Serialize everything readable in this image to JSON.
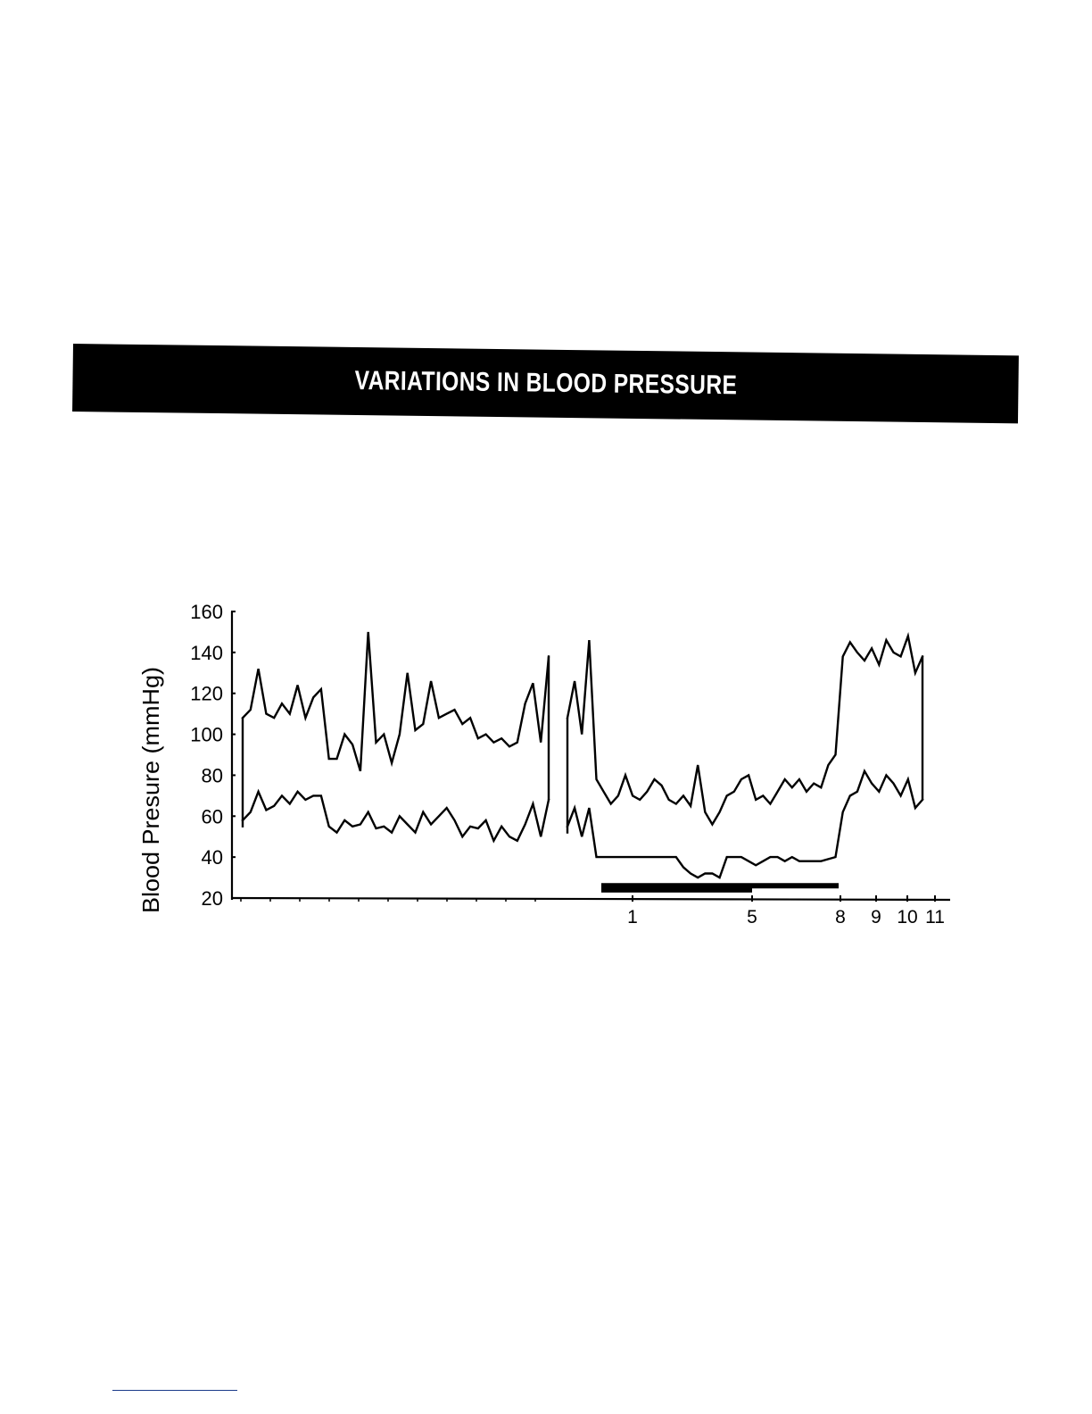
{
  "header": {
    "title": "VARIATIONS IN BLOOD PRESSURE"
  },
  "chart_data": {
    "type": "line",
    "title": "VARIATIONS IN BLOOD PRESSURE",
    "ylabel": "Blood Presure (mmHg)",
    "xlabel": "",
    "ylim": [
      20,
      160
    ],
    "y_ticks": [
      20,
      40,
      60,
      80,
      100,
      120,
      140,
      160
    ],
    "x_tick_labels": [
      "1",
      "5",
      "8",
      "9",
      "10",
      "11"
    ],
    "grid": false,
    "legend": "none",
    "segment_break": 40,
    "x": [
      0,
      1,
      2,
      3,
      4,
      5,
      6,
      7,
      8,
      9,
      10,
      11,
      12,
      13,
      14,
      15,
      16,
      17,
      18,
      19,
      20,
      21,
      22,
      23,
      24,
      25,
      26,
      27,
      28,
      29,
      30,
      31,
      32,
      33,
      34,
      35,
      36,
      37,
      38,
      39,
      40,
      41,
      42,
      43,
      44,
      45,
      46,
      47,
      48,
      49,
      50,
      51,
      52,
      53,
      54,
      55,
      56,
      57,
      58,
      59,
      60,
      61,
      62,
      63,
      64,
      65,
      66,
      67,
      68,
      69,
      70,
      71,
      72,
      73,
      74,
      75,
      76,
      77,
      78,
      79,
      80,
      81,
      82,
      83,
      84,
      85,
      86,
      87,
      88,
      89
    ],
    "series": [
      {
        "values": [
          108,
          112,
          132,
          110,
          108,
          115,
          110,
          124,
          108,
          118,
          122,
          88,
          88,
          100,
          95,
          82,
          150,
          96,
          100,
          86,
          100,
          130,
          102,
          105,
          126,
          108,
          110,
          112,
          105,
          108,
          98,
          100,
          96,
          98,
          94,
          96,
          115,
          125,
          96,
          138,
          108,
          126,
          100,
          146,
          78,
          72,
          66,
          70,
          80,
          70,
          68,
          72,
          78,
          75,
          68,
          66,
          70,
          65,
          85,
          62,
          56,
          62,
          70,
          72,
          78,
          80,
          68,
          70,
          66,
          72,
          78,
          74,
          78,
          72,
          76,
          74,
          85,
          90,
          138,
          145,
          140,
          136,
          142,
          134,
          146,
          140,
          138,
          148,
          130,
          138
        ]
      },
      {
        "values": [
          58,
          62,
          72,
          63,
          65,
          70,
          66,
          72,
          68,
          70,
          70,
          55,
          52,
          58,
          55,
          56,
          62,
          54,
          55,
          52,
          60,
          56,
          52,
          62,
          56,
          60,
          64,
          58,
          50,
          55,
          54,
          58,
          48,
          55,
          50,
          48,
          56,
          66,
          50,
          68,
          55,
          64,
          50,
          64,
          40,
          40,
          40,
          40,
          40,
          40,
          40,
          40,
          40,
          40,
          40,
          40,
          35,
          32,
          30,
          32,
          32,
          30,
          40,
          40,
          40,
          38,
          36,
          38,
          40,
          40,
          38,
          40,
          38,
          38,
          38,
          38,
          39,
          40,
          62,
          70,
          72,
          82,
          76,
          72,
          80,
          76,
          70,
          78,
          64,
          68
        ]
      }
    ],
    "bars_below_axis": [
      {
        "from_tick": "1",
        "to_tick": "8",
        "y": 26
      },
      {
        "from_tick": "1",
        "to_tick": "5",
        "y": 24
      }
    ]
  }
}
